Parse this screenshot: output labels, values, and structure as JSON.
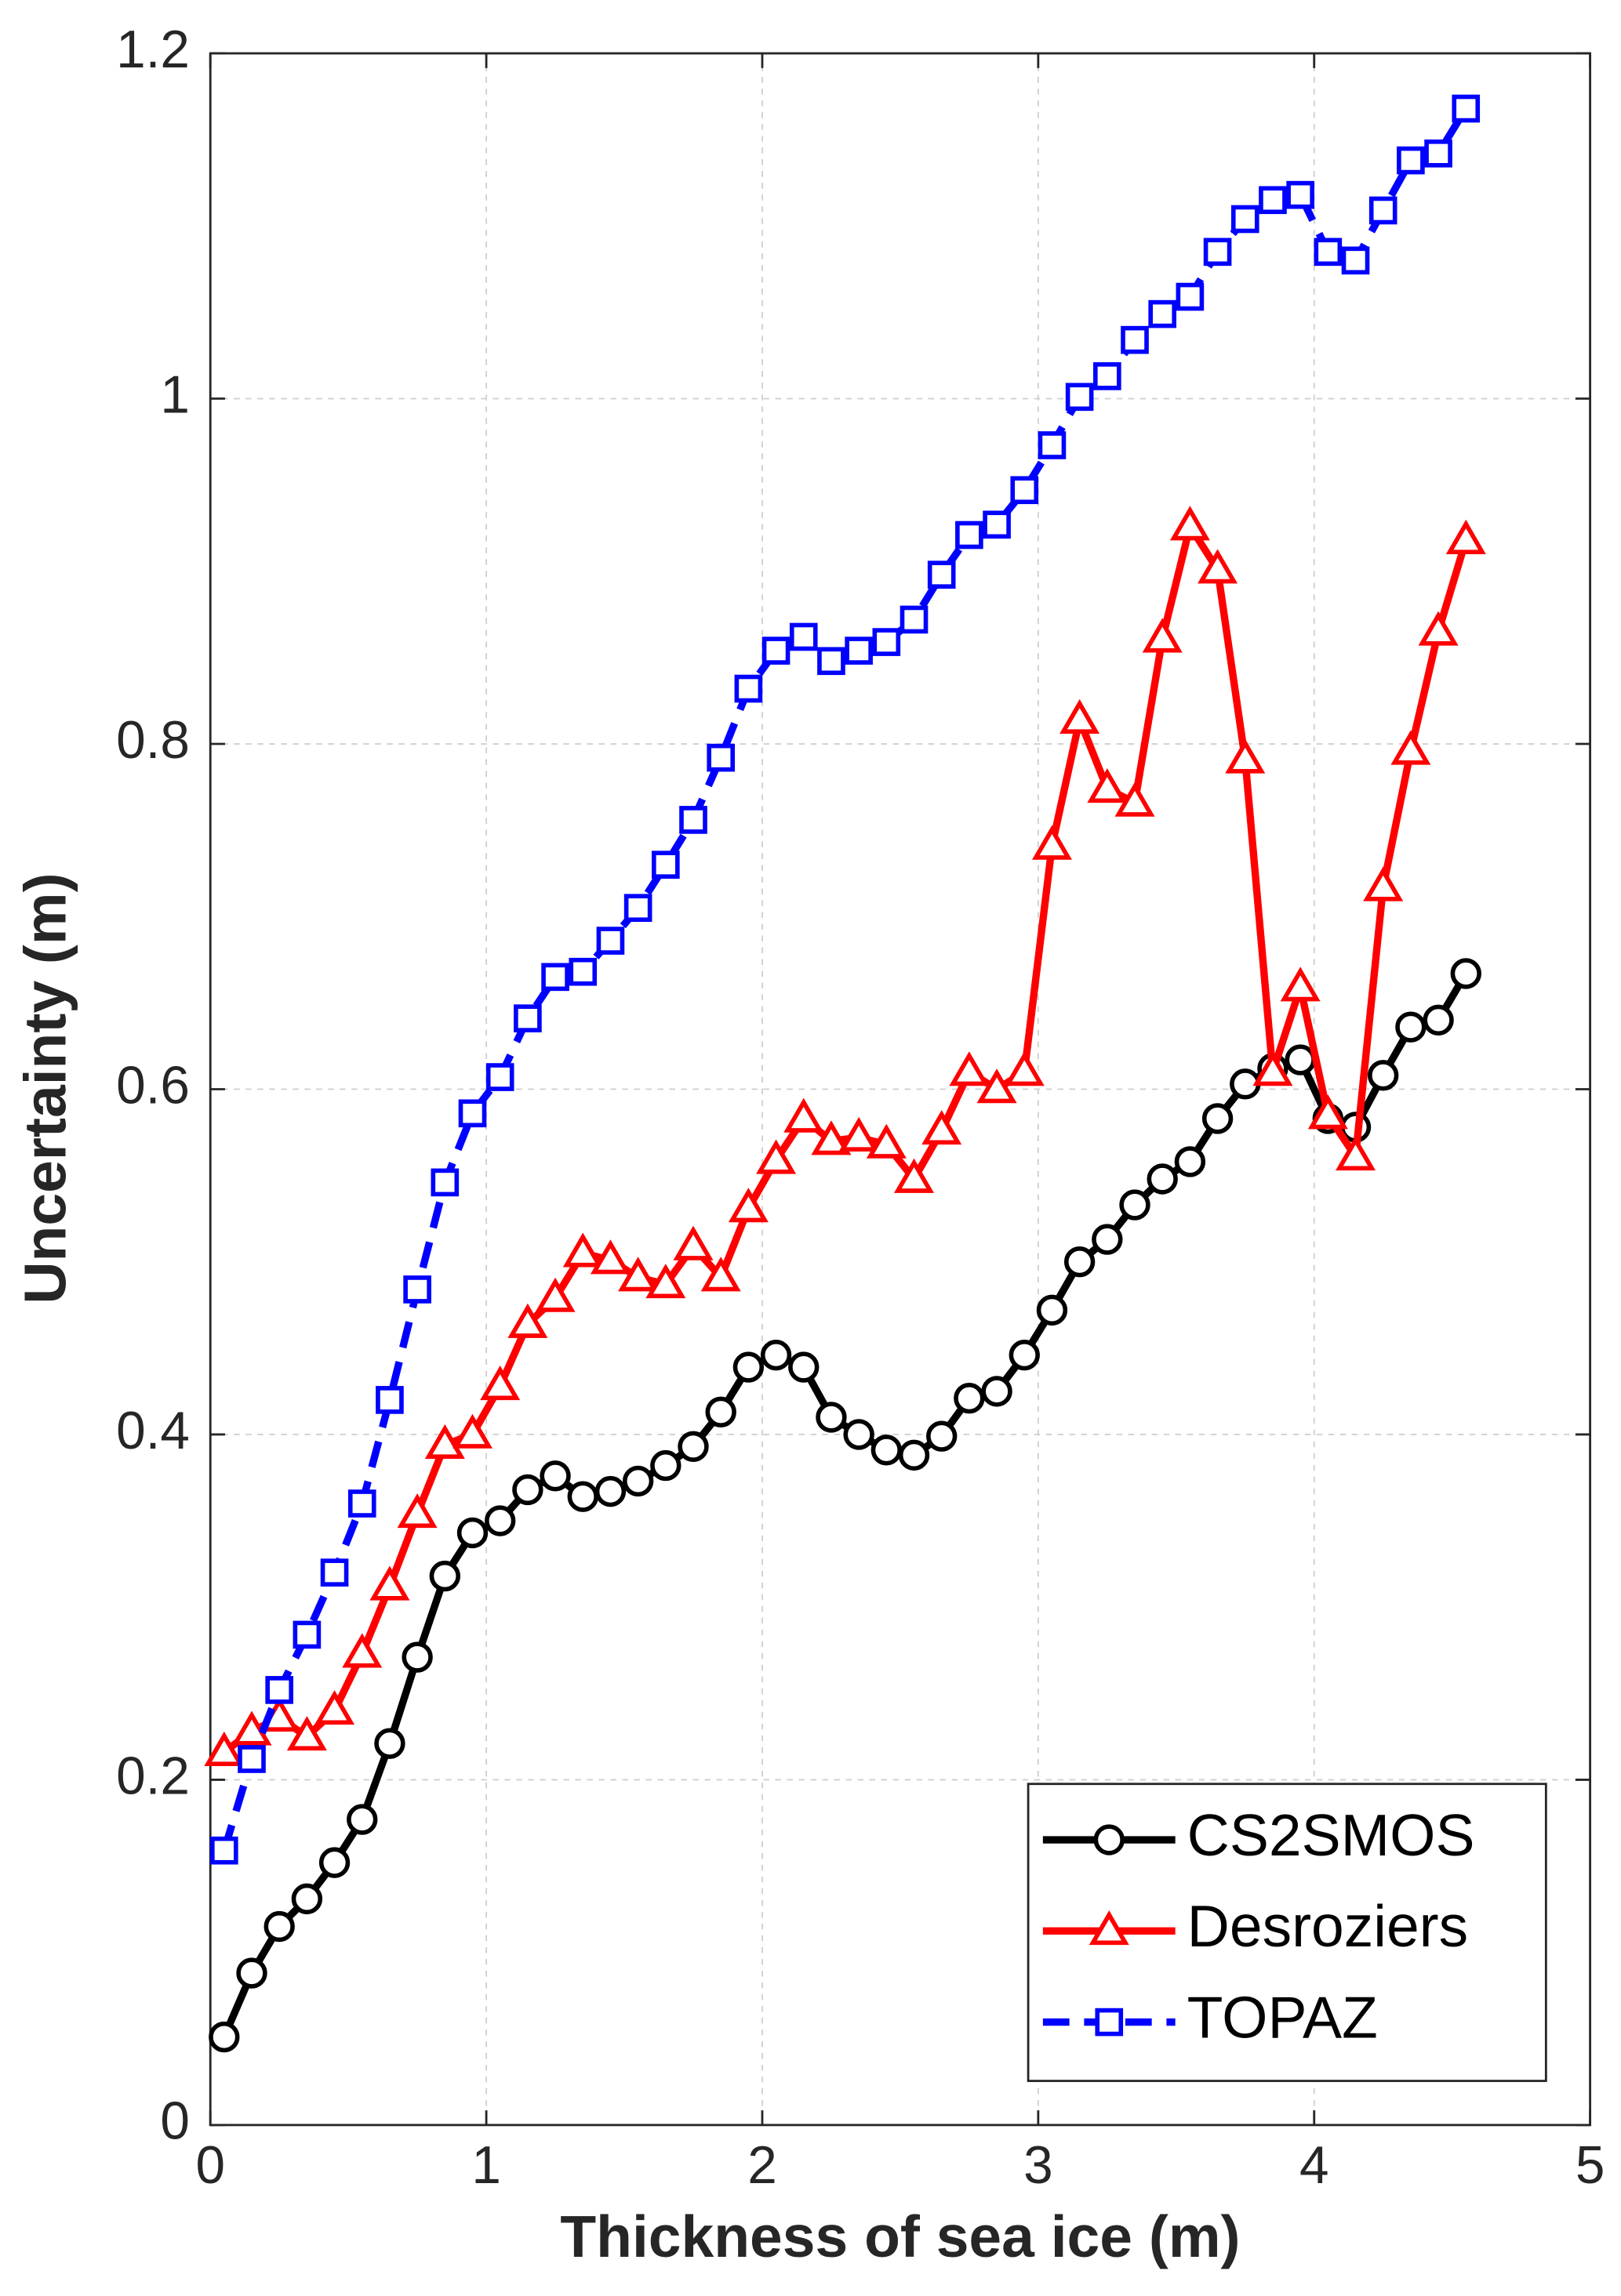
{
  "chart_data": {
    "type": "line",
    "xlabel": "Thickness of sea ice (m)",
    "ylabel": "Uncertainty (m)",
    "x": [
      0.05,
      0.15,
      0.25,
      0.35,
      0.45,
      0.55,
      0.65,
      0.75,
      0.85,
      0.95,
      1.05,
      1.15,
      1.25,
      1.35,
      1.45,
      1.55,
      1.65,
      1.75,
      1.85,
      1.95,
      2.05,
      2.15,
      2.25,
      2.35,
      2.45,
      2.55,
      2.65,
      2.75,
      2.85,
      2.95,
      3.05,
      3.15,
      3.25,
      3.35,
      3.45,
      3.55,
      3.65,
      3.75,
      3.85,
      3.95,
      4.05,
      4.15,
      4.25,
      4.35,
      4.45,
      4.55
    ],
    "series": [
      {
        "name": "CS2SMOS",
        "color": "#000000",
        "marker": "circle",
        "dash": "solid",
        "values": [
          0.051,
          0.088,
          0.115,
          0.131,
          0.152,
          0.177,
          0.221,
          0.271,
          0.318,
          0.343,
          0.35,
          0.368,
          0.376,
          0.364,
          0.367,
          0.373,
          0.382,
          0.393,
          0.413,
          0.439,
          0.446,
          0.439,
          0.41,
          0.4,
          0.391,
          0.388,
          0.399,
          0.421,
          0.425,
          0.446,
          0.472,
          0.5,
          0.513,
          0.533,
          0.548,
          0.558,
          0.583,
          0.603,
          0.612,
          0.617,
          0.583,
          0.578,
          0.608,
          0.636,
          0.64,
          0.667
        ]
      },
      {
        "name": "Desroziers",
        "color": "#ff0000",
        "marker": "triangle",
        "dash": "solid",
        "values": [
          0.216,
          0.228,
          0.236,
          0.225,
          0.24,
          0.273,
          0.312,
          0.354,
          0.394,
          0.4,
          0.428,
          0.464,
          0.479,
          0.505,
          0.501,
          0.491,
          0.487,
          0.509,
          0.491,
          0.531,
          0.559,
          0.583,
          0.57,
          0.572,
          0.568,
          0.548,
          0.576,
          0.61,
          0.6,
          0.61,
          0.741,
          0.814,
          0.774,
          0.766,
          0.861,
          0.926,
          0.901,
          0.791,
          0.61,
          0.659,
          0.585,
          0.561,
          0.717,
          0.796,
          0.865,
          0.918
        ]
      },
      {
        "name": "TOPAZ",
        "color": "#0000ff",
        "marker": "square",
        "dash": "dashed",
        "values": [
          0.159,
          0.212,
          0.252,
          0.284,
          0.32,
          0.36,
          0.42,
          0.484,
          0.546,
          0.586,
          0.607,
          0.641,
          0.665,
          0.668,
          0.686,
          0.705,
          0.73,
          0.756,
          0.792,
          0.832,
          0.854,
          0.862,
          0.848,
          0.854,
          0.859,
          0.872,
          0.898,
          0.921,
          0.927,
          0.947,
          0.973,
          1.001,
          1.013,
          1.034,
          1.049,
          1.059,
          1.085,
          1.104,
          1.115,
          1.118,
          1.085,
          1.08,
          1.109,
          1.138,
          1.142,
          1.168
        ]
      }
    ],
    "xlim": [
      0,
      5
    ],
    "xticks": [
      0,
      1,
      2,
      3,
      4,
      5
    ],
    "ylim": [
      0,
      1.2
    ],
    "yticks": [
      0,
      0.2,
      0.4,
      0.6,
      0.8,
      1,
      1.2
    ],
    "grid": true,
    "legend": "southeast"
  }
}
